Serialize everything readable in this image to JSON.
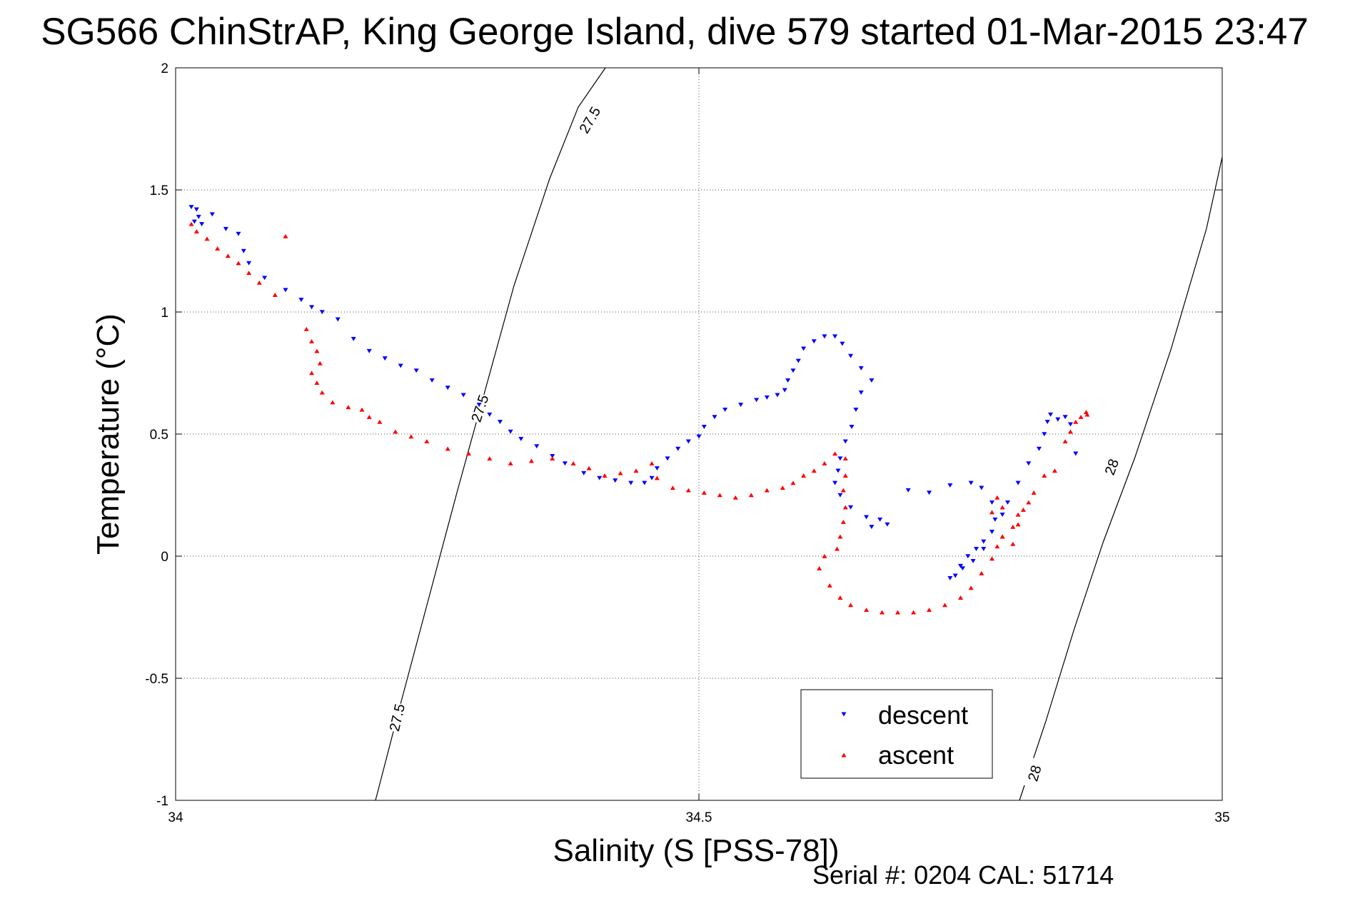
{
  "title": "SG566 ChinStrAP, King George Island, dive 579 started 01-Mar-2015 23:47",
  "footer": "Serial #: 0204  CAL: 51714",
  "colors": {
    "descent": "#0000ff",
    "ascent": "#ff0000",
    "axes": "#000000",
    "grid": "#000000"
  },
  "chart_data": {
    "type": "scatter",
    "title": "SG566 ChinStrAP, King George Island, dive 579 started 01-Mar-2015 23:47",
    "xlabel": "Salinity (S [PSS-78])",
    "ylabel": "Temperature (°C)",
    "xlim": [
      34,
      35
    ],
    "ylim": [
      -1,
      2
    ],
    "xticks": [
      "34",
      "34.5",
      "35"
    ],
    "yticks": [
      "-1",
      "-0.5",
      "0",
      "0.5",
      "1",
      "1.5",
      "2"
    ],
    "xtick_values": [
      34,
      34.5,
      35
    ],
    "ytick_values": [
      -1,
      -0.5,
      0,
      0.5,
      1,
      1.5,
      2
    ],
    "grid": true,
    "legend_position": "bottom-right",
    "series": [
      {
        "name": "descent",
        "marker": "down-triangle",
        "points": [
          [
            34.015,
            1.43
          ],
          [
            34.02,
            1.42
          ],
          [
            34.022,
            1.39
          ],
          [
            34.018,
            1.37
          ],
          [
            34.025,
            1.36
          ],
          [
            34.035,
            1.4
          ],
          [
            34.048,
            1.34
          ],
          [
            34.06,
            1.32
          ],
          [
            34.065,
            1.25
          ],
          [
            34.07,
            1.2
          ],
          [
            34.085,
            1.14
          ],
          [
            34.105,
            1.09
          ],
          [
            34.12,
            1.05
          ],
          [
            34.13,
            1.02
          ],
          [
            34.14,
            1.0
          ],
          [
            34.155,
            0.97
          ],
          [
            34.17,
            0.89
          ],
          [
            34.185,
            0.84
          ],
          [
            34.2,
            0.81
          ],
          [
            34.215,
            0.78
          ],
          [
            34.23,
            0.76
          ],
          [
            34.245,
            0.72
          ],
          [
            34.26,
            0.69
          ],
          [
            34.275,
            0.66
          ],
          [
            34.29,
            0.62
          ],
          [
            34.3,
            0.58
          ],
          [
            34.31,
            0.55
          ],
          [
            34.32,
            0.51
          ],
          [
            34.33,
            0.48
          ],
          [
            34.345,
            0.45
          ],
          [
            34.36,
            0.41
          ],
          [
            34.372,
            0.38
          ],
          [
            34.39,
            0.34
          ],
          [
            34.405,
            0.32
          ],
          [
            34.42,
            0.31
          ],
          [
            34.435,
            0.3
          ],
          [
            34.448,
            0.3
          ],
          [
            34.455,
            0.32
          ],
          [
            34.46,
            0.36
          ],
          [
            34.47,
            0.4
          ],
          [
            34.48,
            0.44
          ],
          [
            34.49,
            0.47
          ],
          [
            34.5,
            0.49
          ],
          [
            34.505,
            0.53
          ],
          [
            34.515,
            0.57
          ],
          [
            34.525,
            0.6
          ],
          [
            34.54,
            0.62
          ],
          [
            34.555,
            0.64
          ],
          [
            34.565,
            0.65
          ],
          [
            34.575,
            0.66
          ],
          [
            34.582,
            0.68
          ],
          [
            34.585,
            0.72
          ],
          [
            34.59,
            0.76
          ],
          [
            34.595,
            0.8
          ],
          [
            34.6,
            0.85
          ],
          [
            34.61,
            0.88
          ],
          [
            34.62,
            0.9
          ],
          [
            34.63,
            0.9
          ],
          [
            34.637,
            0.87
          ],
          [
            34.645,
            0.82
          ],
          [
            34.655,
            0.77
          ],
          [
            34.665,
            0.72
          ],
          [
            34.655,
            0.67
          ],
          [
            34.65,
            0.6
          ],
          [
            34.646,
            0.53
          ],
          [
            34.64,
            0.47
          ],
          [
            34.635,
            0.4
          ],
          [
            34.633,
            0.35
          ],
          [
            34.63,
            0.3
          ],
          [
            34.635,
            0.25
          ],
          [
            34.645,
            0.2
          ],
          [
            34.66,
            0.16
          ],
          [
            34.665,
            0.12
          ],
          [
            34.673,
            0.15
          ],
          [
            34.68,
            0.13
          ],
          [
            34.7,
            0.27
          ],
          [
            34.72,
            0.26
          ],
          [
            34.74,
            0.29
          ],
          [
            34.76,
            0.3
          ],
          [
            34.77,
            0.28
          ],
          [
            34.78,
            0.22
          ],
          [
            34.783,
            0.15
          ],
          [
            34.78,
            0.1
          ],
          [
            34.772,
            0.06
          ],
          [
            34.765,
            0.03
          ],
          [
            34.757,
            0.0
          ],
          [
            34.75,
            -0.04
          ],
          [
            34.745,
            -0.08
          ],
          [
            34.74,
            -0.09
          ],
          [
            34.752,
            -0.05
          ],
          [
            34.762,
            -0.02
          ],
          [
            34.772,
            0.03
          ],
          [
            34.78,
            0.1
          ],
          [
            34.79,
            0.17
          ],
          [
            34.795,
            0.22
          ],
          [
            34.805,
            0.3
          ],
          [
            34.815,
            0.38
          ],
          [
            34.825,
            0.44
          ],
          [
            34.83,
            0.5
          ],
          [
            34.833,
            0.55
          ],
          [
            34.836,
            0.58
          ],
          [
            34.843,
            0.56
          ],
          [
            34.85,
            0.57
          ],
          [
            34.855,
            0.54
          ],
          [
            34.86,
            0.42
          ]
        ]
      },
      {
        "name": "ascent",
        "marker": "up-triangle",
        "points": [
          [
            34.015,
            1.36
          ],
          [
            34.02,
            1.33
          ],
          [
            34.03,
            1.3
          ],
          [
            34.04,
            1.26
          ],
          [
            34.05,
            1.23
          ],
          [
            34.06,
            1.2
          ],
          [
            34.07,
            1.16
          ],
          [
            34.08,
            1.12
          ],
          [
            34.095,
            1.07
          ],
          [
            34.105,
            1.31
          ],
          [
            34.125,
            0.93
          ],
          [
            34.13,
            0.88
          ],
          [
            34.135,
            0.84
          ],
          [
            34.138,
            0.79
          ],
          [
            34.13,
            0.75
          ],
          [
            34.135,
            0.71
          ],
          [
            34.14,
            0.67
          ],
          [
            34.15,
            0.63
          ],
          [
            34.165,
            0.61
          ],
          [
            34.178,
            0.6
          ],
          [
            34.185,
            0.57
          ],
          [
            34.195,
            0.55
          ],
          [
            34.21,
            0.51
          ],
          [
            34.225,
            0.49
          ],
          [
            34.24,
            0.47
          ],
          [
            34.26,
            0.44
          ],
          [
            34.28,
            0.42
          ],
          [
            34.3,
            0.4
          ],
          [
            34.32,
            0.38
          ],
          [
            34.34,
            0.39
          ],
          [
            34.36,
            0.4
          ],
          [
            34.38,
            0.38
          ],
          [
            34.395,
            0.36
          ],
          [
            34.41,
            0.33
          ],
          [
            34.425,
            0.34
          ],
          [
            34.44,
            0.35
          ],
          [
            34.455,
            0.38
          ],
          [
            34.46,
            0.32
          ],
          [
            34.475,
            0.28
          ],
          [
            34.49,
            0.27
          ],
          [
            34.505,
            0.26
          ],
          [
            34.52,
            0.25
          ],
          [
            34.535,
            0.24
          ],
          [
            34.55,
            0.25
          ],
          [
            34.565,
            0.27
          ],
          [
            34.58,
            0.28
          ],
          [
            34.59,
            0.3
          ],
          [
            34.6,
            0.33
          ],
          [
            34.61,
            0.35
          ],
          [
            34.62,
            0.38
          ],
          [
            34.63,
            0.42
          ],
          [
            34.64,
            0.4
          ],
          [
            34.64,
            0.33
          ],
          [
            34.638,
            0.27
          ],
          [
            34.64,
            0.2
          ],
          [
            34.638,
            0.14
          ],
          [
            34.635,
            0.08
          ],
          [
            34.632,
            0.03
          ],
          [
            34.62,
            0.0
          ],
          [
            34.615,
            -0.05
          ],
          [
            34.625,
            -0.12
          ],
          [
            34.635,
            -0.17
          ],
          [
            34.645,
            -0.2
          ],
          [
            34.66,
            -0.22
          ],
          [
            34.675,
            -0.23
          ],
          [
            34.69,
            -0.23
          ],
          [
            34.705,
            -0.23
          ],
          [
            34.72,
            -0.22
          ],
          [
            34.735,
            -0.2
          ],
          [
            34.75,
            -0.17
          ],
          [
            34.76,
            -0.13
          ],
          [
            34.77,
            -0.07
          ],
          [
            34.78,
            -0.01
          ],
          [
            34.785,
            0.04
          ],
          [
            34.79,
            0.08
          ],
          [
            34.8,
            0.12
          ],
          [
            34.805,
            0.17
          ],
          [
            34.79,
            0.2
          ],
          [
            34.785,
            0.24
          ],
          [
            34.78,
            0.18
          ],
          [
            34.79,
            0.08
          ],
          [
            34.8,
            0.05
          ],
          [
            34.805,
            0.13
          ],
          [
            34.81,
            0.19
          ],
          [
            34.815,
            0.22
          ],
          [
            34.82,
            0.26
          ],
          [
            34.83,
            0.33
          ],
          [
            34.84,
            0.35
          ],
          [
            34.85,
            0.47
          ],
          [
            34.855,
            0.51
          ],
          [
            34.86,
            0.55
          ],
          [
            34.865,
            0.57
          ],
          [
            34.87,
            0.59
          ],
          [
            34.871,
            0.58
          ]
        ]
      }
    ],
    "isopycnals": [
      {
        "label": "27.5",
        "label_count": 3
      },
      {
        "label": "28",
        "label_count": 2
      }
    ]
  }
}
